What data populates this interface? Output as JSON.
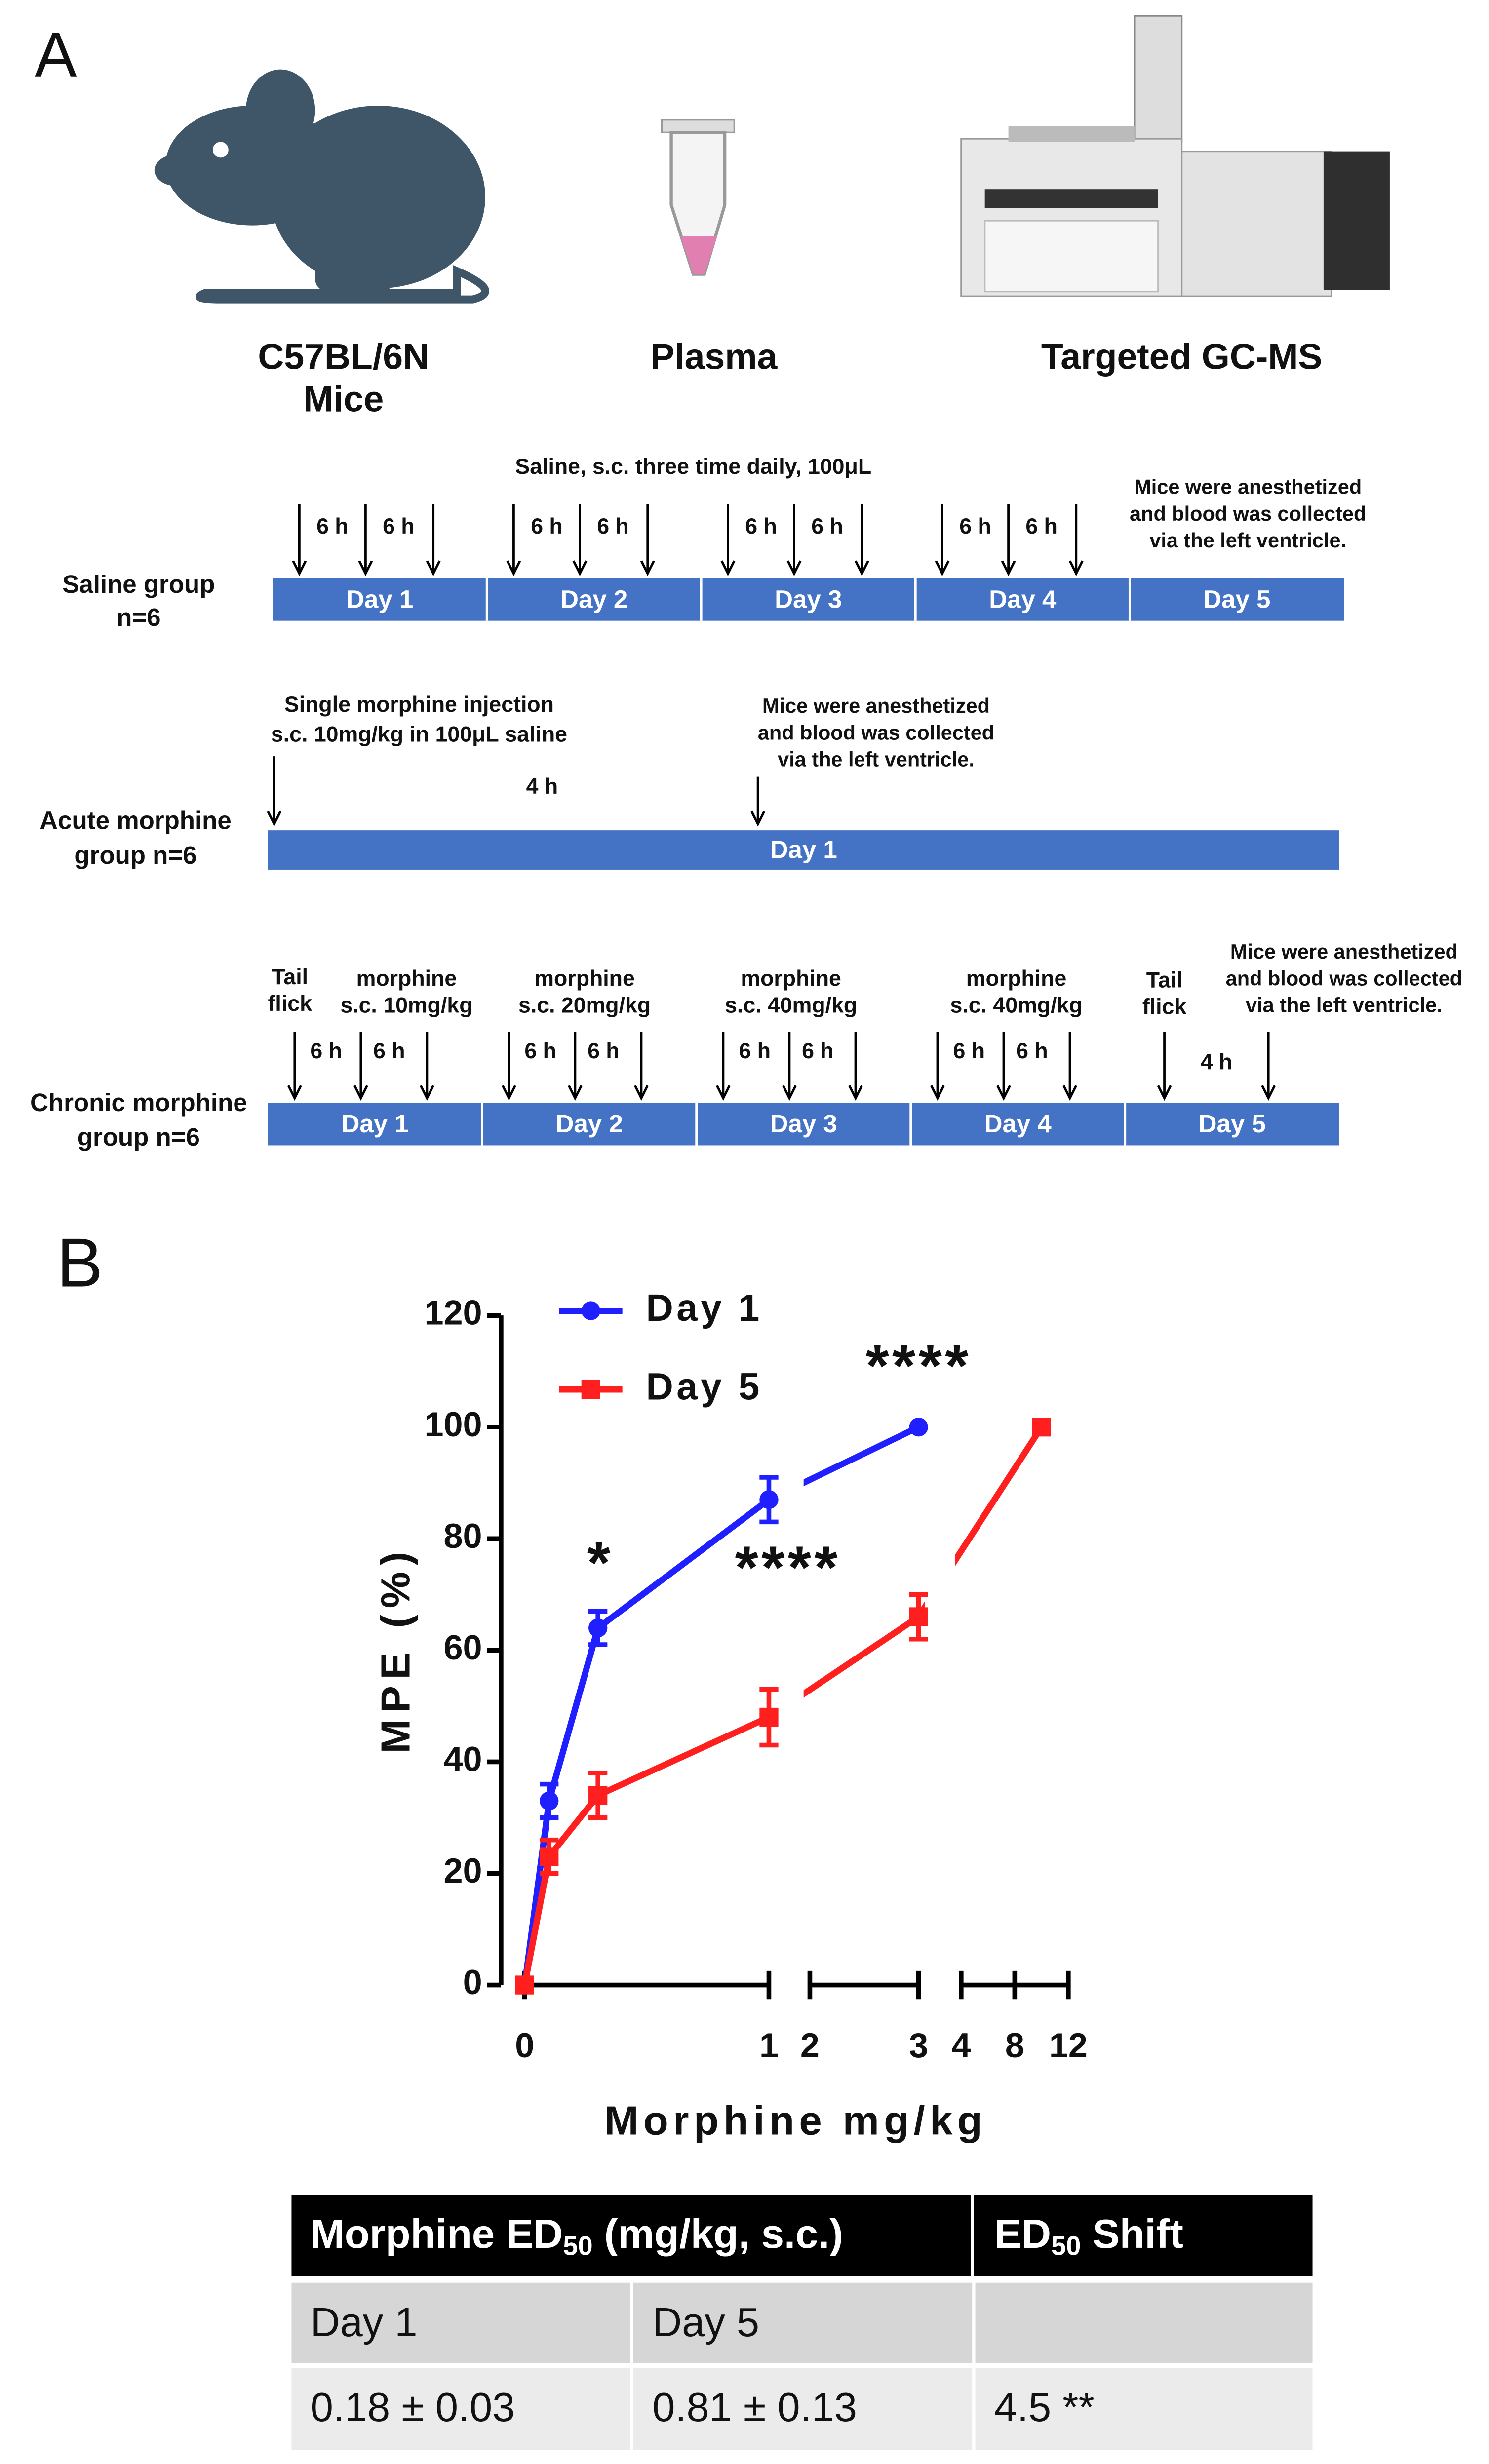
{
  "panel_a": {
    "label": "A",
    "samples": [
      [
        "C57BL/6N",
        "Mice"
      ],
      [
        "Plasma"
      ],
      [
        "Targeted GC-MS"
      ]
    ],
    "saline": {
      "header": "Saline, s.c. three time daily, 100μL",
      "group": [
        "Saline group",
        "n=6"
      ],
      "interval": "6 h",
      "days": [
        "Day 1",
        "Day 2",
        "Day 3",
        "Day 4",
        "Day 5"
      ],
      "note": [
        "Mice were anesthetized",
        "and blood was collected",
        "via the left ventricle."
      ]
    },
    "acute": {
      "group": [
        "Acute morphine",
        "group n=6"
      ],
      "injection": [
        "Single morphine injection",
        "s.c. 10mg/kg in 100μL saline"
      ],
      "interval": "4 h",
      "days": [
        "Day 1"
      ],
      "note": [
        "Mice were anesthetized",
        "and blood was collected",
        "via the left ventricle."
      ]
    },
    "chronic": {
      "group": [
        "Chronic morphine",
        "group n=6"
      ],
      "tail_flick": [
        "Tail",
        "flick"
      ],
      "doses": [
        [
          "morphine",
          "s.c. 10mg/kg"
        ],
        [
          "morphine",
          "s.c. 20mg/kg"
        ],
        [
          "morphine",
          "s.c. 40mg/kg"
        ],
        [
          "morphine",
          "s.c. 40mg/kg"
        ]
      ],
      "interval": "6 h",
      "final_interval": "4 h",
      "days": [
        "Day 1",
        "Day 2",
        "Day 3",
        "Day 4",
        "Day 5"
      ],
      "note": [
        "Mice were anesthetized",
        "and blood was collected",
        "via the left ventricle."
      ]
    }
  },
  "panel_b_label": "B",
  "chart_data": {
    "type": "line",
    "xlabel": "Morphine mg/kg",
    "ylabel": "MPE (%)",
    "xlim": [
      0,
      12
    ],
    "x_segments": [
      [
        0,
        1
      ],
      [
        2,
        3
      ],
      [
        4,
        12
      ]
    ],
    "xticks": [
      0,
      1,
      2,
      3,
      4,
      8,
      12
    ],
    "ylim": [
      0,
      120
    ],
    "yticks": [
      0,
      20,
      40,
      60,
      80,
      100,
      120
    ],
    "legend": "upper left",
    "series": [
      {
        "name": "Day 1",
        "color": "#1f1fff",
        "marker": "circle",
        "x": [
          0,
          0.1,
          0.3,
          1,
          3
        ],
        "values": [
          0,
          33,
          64,
          87,
          100
        ],
        "errors": [
          0,
          3,
          3,
          4,
          0
        ]
      },
      {
        "name": "Day 5",
        "color": "#ff1f1f",
        "marker": "square",
        "x": [
          0,
          0.1,
          0.3,
          1,
          3,
          10
        ],
        "values": [
          0,
          23,
          34,
          48,
          66,
          100
        ],
        "errors": [
          0,
          3,
          4,
          5,
          4,
          0
        ]
      }
    ],
    "annotations": [
      "*",
      "****",
      "****"
    ]
  },
  "table": {
    "header": [
      [
        "Morphine ED",
        "50",
        " (mg/kg, s.c.)"
      ],
      [
        "ED",
        "50",
        " Shift"
      ]
    ],
    "rows": [
      [
        "Day 1",
        "Day 5"
      ],
      [
        "0.18 ± 0.03",
        "0.81 ± 0.13",
        "4.5 **"
      ]
    ]
  }
}
